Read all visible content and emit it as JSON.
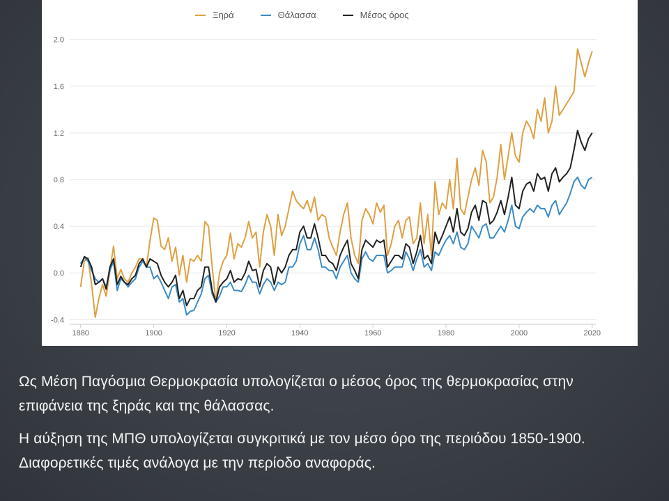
{
  "slide": {
    "text_lines": [
      "Ως Μέση Παγόσμια Θερμοκρασία υπολογίζεται ο μέσος όρος της θερμοκρασίας στην",
      "επιφάνεια της ξηράς και της θάλασσας.",
      "Η αύξηση της ΜΠΘ υπολογίζεται συγκριτικά με τον μέσο όρο της περιόδου 1850-1900.",
      "Διαφορετικές τιμές ανάλογα με την περίοδο αναφοράς."
    ]
  },
  "colors": {
    "slide_background": "#3a3f46",
    "chart_background": "#ffffff",
    "slide_text": "#f4f4f4"
  },
  "chart_data": {
    "type": "line",
    "title": "",
    "xlabel": "",
    "ylabel": "",
    "xlim": [
      1877,
      2021
    ],
    "ylim": [
      -0.44,
      2.07
    ],
    "grid": true,
    "legend_position": "top-center",
    "xticks": [
      1880,
      1900,
      1920,
      1940,
      1960,
      1980,
      2000,
      2020
    ],
    "yticks": [
      -0.4,
      0.0,
      0.4,
      0.8,
      1.2,
      1.6,
      2.0
    ],
    "ytick_labels": [
      "-0.4",
      "0.0",
      "0.4",
      "0.8",
      "1.2",
      "1.6",
      "2.0"
    ],
    "x": [
      1880,
      1881,
      1882,
      1883,
      1884,
      1885,
      1886,
      1887,
      1888,
      1889,
      1890,
      1891,
      1892,
      1893,
      1894,
      1895,
      1896,
      1897,
      1898,
      1899,
      1900,
      1901,
      1902,
      1903,
      1904,
      1905,
      1906,
      1907,
      1908,
      1909,
      1910,
      1911,
      1912,
      1913,
      1914,
      1915,
      1916,
      1917,
      1918,
      1919,
      1920,
      1921,
      1922,
      1923,
      1924,
      1925,
      1926,
      1927,
      1928,
      1929,
      1930,
      1931,
      1932,
      1933,
      1934,
      1935,
      1936,
      1937,
      1938,
      1939,
      1940,
      1941,
      1942,
      1943,
      1944,
      1945,
      1946,
      1947,
      1948,
      1949,
      1950,
      1951,
      1952,
      1953,
      1954,
      1955,
      1956,
      1957,
      1958,
      1959,
      1960,
      1961,
      1962,
      1963,
      1964,
      1965,
      1966,
      1967,
      1968,
      1969,
      1970,
      1971,
      1972,
      1973,
      1974,
      1975,
      1976,
      1977,
      1978,
      1979,
      1980,
      1981,
      1982,
      1983,
      1984,
      1985,
      1986,
      1987,
      1988,
      1989,
      1990,
      1991,
      1992,
      1993,
      1994,
      1995,
      1996,
      1997,
      1998,
      1999,
      2000,
      2001,
      2002,
      2003,
      2004,
      2005,
      2006,
      2007,
      2008,
      2009,
      2010,
      2011,
      2012,
      2013,
      2014,
      2015,
      2016,
      2017,
      2018,
      2019,
      2020
    ],
    "series": [
      {
        "name": "Ξηρά",
        "color": "#dfa043",
        "values": [
          -0.12,
          0.1,
          0.13,
          -0.1,
          -0.38,
          -0.22,
          -0.1,
          -0.2,
          0.02,
          0.23,
          -0.05,
          0.03,
          -0.05,
          -0.08,
          0.0,
          0.05,
          0.12,
          0.12,
          0.05,
          0.28,
          0.47,
          0.45,
          0.23,
          0.2,
          0.3,
          0.1,
          0.22,
          -0.02,
          0.15,
          -0.08,
          0.12,
          0.1,
          0.15,
          0.1,
          0.44,
          0.4,
          0.05,
          -0.25,
          0.0,
          0.1,
          0.15,
          0.34,
          0.12,
          0.25,
          0.22,
          0.3,
          0.44,
          0.3,
          0.35,
          0.05,
          0.35,
          0.5,
          0.4,
          0.15,
          0.5,
          0.32,
          0.4,
          0.55,
          0.7,
          0.62,
          0.58,
          0.55,
          0.62,
          0.52,
          0.65,
          0.45,
          0.5,
          0.48,
          0.3,
          0.22,
          0.15,
          0.35,
          0.5,
          0.6,
          0.3,
          0.15,
          0.08,
          0.45,
          0.55,
          0.5,
          0.42,
          0.6,
          0.52,
          0.58,
          0.15,
          0.25,
          0.4,
          0.45,
          0.3,
          0.45,
          0.48,
          0.25,
          0.3,
          0.6,
          0.25,
          0.5,
          0.15,
          0.78,
          0.5,
          0.6,
          0.55,
          0.8,
          0.55,
          0.98,
          0.55,
          0.5,
          0.65,
          0.8,
          0.9,
          0.75,
          1.05,
          0.95,
          0.6,
          0.65,
          0.82,
          1.1,
          0.8,
          1.0,
          1.2,
          1.0,
          0.95,
          1.2,
          1.3,
          1.25,
          1.15,
          1.4,
          1.3,
          1.5,
          1.2,
          1.3,
          1.6,
          1.35,
          1.4,
          1.45,
          1.5,
          1.55,
          1.92,
          1.8,
          1.68,
          1.8,
          1.9
        ]
      },
      {
        "name": "Θάλασσα",
        "color": "#3b8bc6",
        "values": [
          0.08,
          0.13,
          0.1,
          0.02,
          -0.05,
          -0.08,
          -0.05,
          -0.12,
          0.02,
          0.1,
          -0.15,
          -0.05,
          -0.08,
          -0.12,
          -0.08,
          -0.05,
          0.05,
          0.1,
          0.05,
          0.05,
          -0.05,
          -0.02,
          -0.08,
          -0.15,
          -0.22,
          -0.12,
          -0.1,
          -0.25,
          -0.22,
          -0.36,
          -0.33,
          -0.32,
          -0.25,
          -0.18,
          -0.05,
          -0.02,
          -0.18,
          -0.25,
          -0.2,
          -0.12,
          -0.12,
          -0.08,
          -0.15,
          -0.15,
          -0.16,
          -0.1,
          -0.02,
          -0.08,
          -0.08,
          -0.18,
          -0.1,
          -0.05,
          -0.08,
          -0.15,
          -0.08,
          -0.1,
          -0.08,
          0.05,
          0.05,
          0.1,
          0.25,
          0.32,
          0.2,
          0.2,
          0.3,
          0.2,
          0.05,
          0.05,
          0.02,
          0.02,
          -0.05,
          0.05,
          0.1,
          0.15,
          0.0,
          -0.05,
          -0.08,
          0.12,
          0.18,
          0.12,
          0.1,
          0.15,
          0.15,
          0.15,
          0.0,
          0.02,
          0.05,
          0.05,
          0.05,
          0.18,
          0.12,
          0.02,
          0.12,
          0.2,
          0.05,
          0.08,
          0.02,
          0.18,
          0.15,
          0.22,
          0.28,
          0.32,
          0.25,
          0.35,
          0.22,
          0.2,
          0.25,
          0.4,
          0.35,
          0.3,
          0.4,
          0.42,
          0.3,
          0.3,
          0.35,
          0.4,
          0.35,
          0.45,
          0.58,
          0.4,
          0.38,
          0.48,
          0.52,
          0.55,
          0.52,
          0.58,
          0.55,
          0.55,
          0.48,
          0.58,
          0.62,
          0.5,
          0.55,
          0.6,
          0.68,
          0.78,
          0.82,
          0.75,
          0.72,
          0.8,
          0.82
        ]
      },
      {
        "name": "Μέσος όρος",
        "color": "#222222",
        "values": [
          0.05,
          0.14,
          0.12,
          0.05,
          -0.1,
          -0.08,
          -0.05,
          -0.14,
          0.05,
          0.12,
          -0.1,
          -0.03,
          -0.08,
          -0.1,
          -0.05,
          -0.02,
          0.08,
          0.12,
          0.05,
          0.12,
          0.1,
          0.08,
          -0.02,
          -0.08,
          -0.12,
          -0.08,
          -0.02,
          -0.22,
          -0.15,
          -0.28,
          -0.22,
          -0.22,
          -0.15,
          -0.12,
          0.05,
          0.05,
          -0.15,
          -0.25,
          -0.12,
          -0.08,
          -0.05,
          0.02,
          -0.08,
          -0.05,
          -0.06,
          0.0,
          0.1,
          0.02,
          0.03,
          -0.12,
          0.02,
          0.08,
          0.05,
          -0.1,
          0.05,
          0.0,
          0.05,
          0.15,
          0.2,
          0.2,
          0.35,
          0.4,
          0.3,
          0.3,
          0.42,
          0.3,
          0.15,
          0.15,
          0.1,
          0.08,
          0.02,
          0.15,
          0.22,
          0.28,
          0.08,
          0.02,
          -0.05,
          0.2,
          0.28,
          0.25,
          0.22,
          0.28,
          0.26,
          0.28,
          0.05,
          0.1,
          0.15,
          0.15,
          0.12,
          0.25,
          0.22,
          0.08,
          0.18,
          0.32,
          0.12,
          0.15,
          0.08,
          0.35,
          0.25,
          0.32,
          0.4,
          0.48,
          0.35,
          0.55,
          0.35,
          0.32,
          0.38,
          0.52,
          0.58,
          0.45,
          0.62,
          0.6,
          0.42,
          0.45,
          0.52,
          0.62,
          0.5,
          0.65,
          0.82,
          0.58,
          0.55,
          0.7,
          0.76,
          0.78,
          0.7,
          0.85,
          0.8,
          0.82,
          0.7,
          0.85,
          0.9,
          0.78,
          0.82,
          0.85,
          0.9,
          1.05,
          1.22,
          1.12,
          1.05,
          1.15,
          1.2
        ]
      }
    ]
  }
}
